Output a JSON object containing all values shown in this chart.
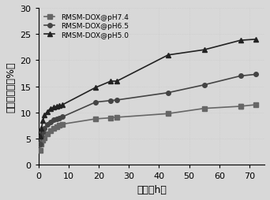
{
  "title": "",
  "xlabel": "时间（h）",
  "ylabel": "累积释放量（%）",
  "xlim": [
    0,
    75
  ],
  "ylim": [
    0,
    30
  ],
  "xticks": [
    0,
    10,
    20,
    30,
    40,
    50,
    60,
    70
  ],
  "yticks": [
    0,
    5,
    10,
    15,
    20,
    25,
    30
  ],
  "series": [
    {
      "label": "RMSM-DOX@pH7.4",
      "marker": "s",
      "color": "#666666",
      "x": [
        0.5,
        1,
        1.5,
        2,
        3,
        4,
        5,
        6,
        7,
        8,
        19,
        24,
        26,
        43,
        55,
        67,
        72
      ],
      "y": [
        2.8,
        4.0,
        4.8,
        5.2,
        6.0,
        6.5,
        7.0,
        7.3,
        7.6,
        7.8,
        8.8,
        9.0,
        9.1,
        9.8,
        10.8,
        11.2,
        11.5
      ],
      "yerr": [
        0,
        0,
        0,
        0,
        0,
        0,
        0,
        0,
        0,
        0,
        0,
        0,
        0,
        0,
        0,
        0.4,
        0.35
      ]
    },
    {
      "label": "RMSM-DOX@pH6.5",
      "marker": "o",
      "color": "#444444",
      "x": [
        0.5,
        1,
        1.5,
        2,
        3,
        4,
        5,
        6,
        7,
        8,
        19,
        24,
        26,
        43,
        55,
        67,
        72
      ],
      "y": [
        4.0,
        5.5,
        6.3,
        7.0,
        7.8,
        8.2,
        8.6,
        8.8,
        9.0,
        9.2,
        12.0,
        12.3,
        12.4,
        13.8,
        15.3,
        17.0,
        17.3
      ],
      "yerr": [
        0,
        0,
        0,
        0,
        0,
        0,
        0,
        0,
        0,
        0,
        0,
        0,
        0,
        0,
        0,
        0,
        0
      ]
    },
    {
      "label": "RMSM-DOX@pH5.0",
      "marker": "^",
      "color": "#222222",
      "x": [
        0.5,
        1,
        1.5,
        2,
        3,
        4,
        5,
        6,
        7,
        8,
        19,
        24,
        26,
        43,
        55,
        67,
        72
      ],
      "y": [
        5.5,
        7.0,
        8.5,
        9.5,
        10.2,
        10.8,
        11.0,
        11.2,
        11.3,
        11.5,
        14.8,
        16.0,
        16.0,
        21.0,
        22.0,
        23.8,
        24.0
      ],
      "yerr": [
        0,
        0,
        0,
        0,
        0,
        0,
        0,
        0,
        0,
        0,
        0,
        0,
        0,
        0,
        0,
        0,
        0
      ]
    }
  ],
  "legend_loc": "upper left",
  "markersize": 4,
  "linewidth": 1.2,
  "bg_color": "#d8d8d8",
  "plot_bg": "#d8d8d8",
  "grid_color": "#bbbbbb",
  "grid_alpha": 0.5
}
